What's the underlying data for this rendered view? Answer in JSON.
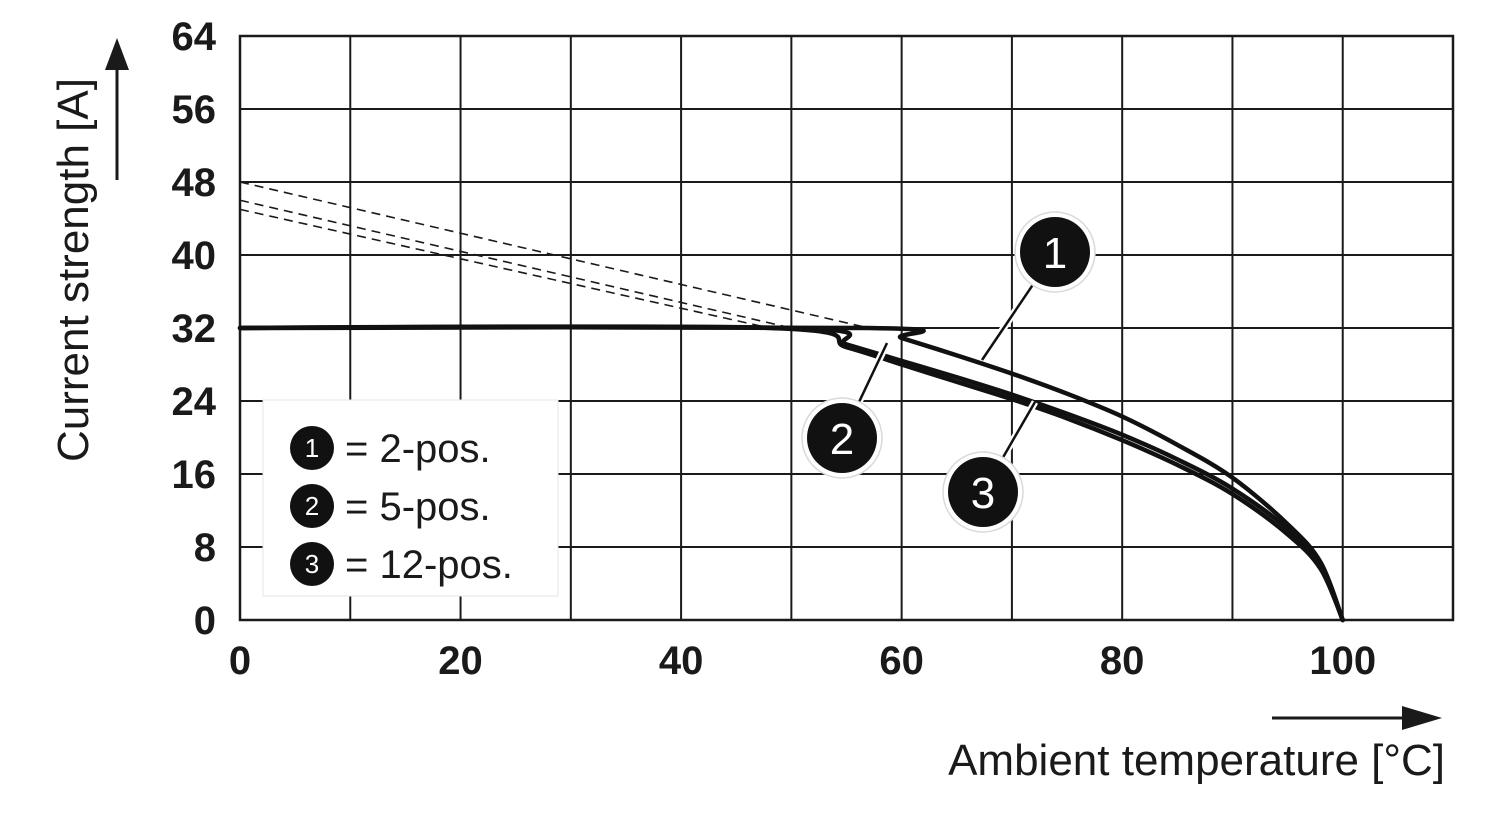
{
  "chart_data": {
    "type": "line",
    "xlabel": "Ambient temperature [°C]",
    "ylabel": "Current strength [A]",
    "xlim": [
      0,
      110
    ],
    "ylim": [
      0,
      64
    ],
    "x_ticks": [
      "0",
      "20",
      "40",
      "60",
      "80",
      "100"
    ],
    "y_ticks": [
      "0",
      "8",
      "16",
      "24",
      "32",
      "40",
      "48",
      "56",
      "64"
    ],
    "grid": true,
    "series": [
      {
        "name": "1",
        "label": "= 2-pos.",
        "x": [
          0,
          57,
          60,
          65,
          70,
          75,
          80,
          85,
          90,
          95,
          98,
          100
        ],
        "y": [
          32,
          32,
          30.9,
          29.0,
          27.0,
          24.8,
          22.3,
          19.2,
          15.6,
          10.5,
          6.3,
          0
        ],
        "extrapolation": {
          "x": [
            0,
            57
          ],
          "y": [
            48,
            32
          ]
        }
      },
      {
        "name": "2",
        "label": "= 5-pos.",
        "x": [
          0,
          50,
          55,
          60,
          65,
          70,
          75,
          80,
          85,
          90,
          95,
          98,
          100
        ],
        "y": [
          32,
          32,
          30.2,
          28.4,
          26.6,
          24.7,
          22.6,
          20.3,
          17.6,
          14.4,
          10.0,
          6.0,
          0
        ],
        "extrapolation": {
          "x": [
            0,
            50
          ],
          "y": [
            46,
            32
          ]
        }
      },
      {
        "name": "3",
        "label": "= 12-pos.",
        "x": [
          0,
          48,
          55,
          60,
          65,
          70,
          75,
          80,
          85,
          90,
          95,
          98,
          100
        ],
        "y": [
          32,
          32,
          29.9,
          28.0,
          26.1,
          24.2,
          22.1,
          19.7,
          17.0,
          13.8,
          9.4,
          5.6,
          0
        ],
        "extrapolation": {
          "x": [
            0,
            48
          ],
          "y": [
            45,
            32
          ]
        }
      }
    ],
    "legend_placement": "bottom-left"
  }
}
